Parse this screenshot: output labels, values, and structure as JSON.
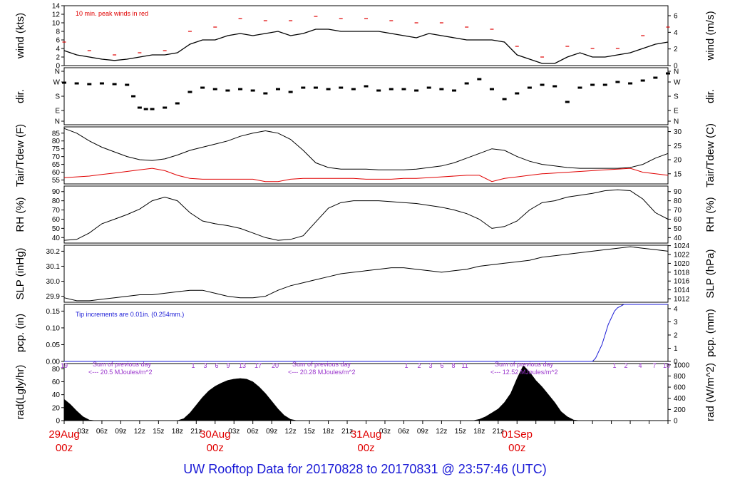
{
  "caption": "UW Rooftop Data for 20170828  to  20170831 @ 23:57:46  (UTC)",
  "colors": {
    "black": "#000000",
    "red": "#e00000",
    "blue": "#1a1ad6",
    "purple": "#9933cc"
  },
  "chart_data": [
    {
      "type": "line",
      "ylabel": "wind (kts)",
      "ylabel_right": "wind (m/s)",
      "ylim": [
        0,
        14
      ],
      "yticks": [
        "0",
        "2",
        "4",
        "6",
        "8",
        "10",
        "12",
        "14"
      ],
      "ylim_right": [
        0,
        7.2
      ],
      "yticks_right": [
        "0",
        "2",
        "4",
        "6"
      ],
      "annotation": "10 min. peak winds in red",
      "series": [
        {
          "x": [
            0,
            2,
            4,
            6,
            8,
            10,
            12,
            14,
            16,
            18,
            20,
            22,
            24,
            26,
            28,
            30,
            32,
            34,
            36,
            38,
            40,
            42,
            44,
            46,
            48,
            50,
            52,
            54,
            56,
            58,
            60,
            62,
            64,
            66,
            68,
            70,
            72,
            74,
            76,
            78,
            80,
            82,
            84,
            86,
            88,
            90,
            92,
            94,
            96
          ],
          "y": [
            3.5,
            2.5,
            2.0,
            1.5,
            1.2,
            1.5,
            2.0,
            2.5,
            2.5,
            3.0,
            5.0,
            6.0,
            6.0,
            7.0,
            7.5,
            7.0,
            7.5,
            8.0,
            7.0,
            7.5,
            8.5,
            8.5,
            8.0,
            8.0,
            8.0,
            8.0,
            7.5,
            7.0,
            6.5,
            7.5,
            7.0,
            6.5,
            6.0,
            6.0,
            6.0,
            5.5,
            2.5,
            1.5,
            0.5,
            0.5,
            2.0,
            3.0,
            2.0,
            2.0,
            2.5,
            3.0,
            4.0,
            5.0,
            5.5
          ]
        },
        {
          "x": [
            0,
            4,
            8,
            12,
            16,
            20,
            24,
            28,
            32,
            36,
            40,
            44,
            48,
            52,
            56,
            60,
            64,
            68,
            72,
            76,
            80,
            84,
            88,
            92,
            96
          ],
          "y": [
            5.5,
            3.5,
            2.5,
            3.0,
            3.5,
            8.0,
            9.0,
            11.0,
            10.5,
            10.5,
            11.5,
            11.0,
            11.0,
            10.5,
            10.0,
            10.0,
            9.0,
            8.5,
            4.5,
            2.0,
            4.5,
            4.0,
            4.0,
            7.0,
            9.0
          ]
        }
      ]
    },
    {
      "type": "scatter",
      "ylabel": "dir.",
      "ylabel_right": "dir.",
      "ylim": [
        0,
        4
      ],
      "yticks": [
        "N",
        "E",
        "S",
        "W",
        "N"
      ],
      "yticks_right": [
        "N",
        "E",
        "S",
        "W",
        "N"
      ],
      "series": [
        {
          "x": [
            0,
            2,
            4,
            6,
            8,
            10,
            11,
            12,
            13,
            14,
            16,
            18,
            20,
            22,
            24,
            26,
            28,
            30,
            32,
            34,
            36,
            38,
            40,
            42,
            44,
            46,
            48,
            50,
            52,
            54,
            56,
            58,
            60,
            62,
            64,
            66,
            68,
            70,
            72,
            74,
            76,
            78,
            80,
            82,
            84,
            86,
            88,
            90,
            92,
            94,
            96
          ],
          "y": [
            2.95,
            2.9,
            2.85,
            2.9,
            2.85,
            2.8,
            2.0,
            1.2,
            1.1,
            1.1,
            1.2,
            1.5,
            2.3,
            2.6,
            2.5,
            2.4,
            2.5,
            2.4,
            2.2,
            2.5,
            2.3,
            2.6,
            2.6,
            2.5,
            2.6,
            2.5,
            2.7,
            2.4,
            2.5,
            2.5,
            2.4,
            2.6,
            2.5,
            2.4,
            2.9,
            3.2,
            2.5,
            1.8,
            2.2,
            2.6,
            2.8,
            2.7,
            1.6,
            2.6,
            2.8,
            2.8,
            3.0,
            2.9,
            3.1,
            3.3,
            3.6
          ]
        }
      ]
    },
    {
      "type": "line",
      "ylabel": "Tair/Tdew (F)",
      "ylabel_right": "Tair/Tdew (C)",
      "ylim": [
        52.5,
        89
      ],
      "yticks": [
        "55",
        "60",
        "65",
        "70",
        "75",
        "80",
        "85"
      ],
      "yticks_right": [
        "15",
        "20",
        "25",
        "30"
      ],
      "series": [
        {
          "x": [
            0,
            2,
            4,
            6,
            8,
            10,
            12,
            14,
            16,
            18,
            20,
            22,
            24,
            26,
            28,
            30,
            32,
            34,
            36,
            38,
            40,
            42,
            44,
            46,
            48,
            50,
            52,
            54,
            56,
            58,
            60,
            62,
            64,
            66,
            68,
            70,
            72,
            74,
            76,
            78,
            80,
            82,
            84,
            86,
            88,
            90,
            92,
            94,
            96
          ],
          "y": [
            88,
            85,
            80,
            76,
            73,
            70,
            68,
            67.5,
            68.5,
            71,
            74,
            76,
            78,
            80,
            83,
            85,
            86.5,
            85,
            81,
            74,
            66,
            63,
            62,
            62,
            62,
            61.5,
            61.5,
            61.5,
            62,
            63,
            64,
            66,
            69,
            72,
            75,
            74,
            70,
            67,
            65,
            64,
            63,
            62.5,
            62.5,
            62.5,
            62.5,
            63,
            65,
            69,
            72
          ]
        },
        {
          "x": [
            0,
            2,
            4,
            6,
            8,
            10,
            12,
            14,
            16,
            18,
            20,
            22,
            24,
            26,
            28,
            30,
            32,
            34,
            36,
            38,
            40,
            42,
            44,
            46,
            48,
            50,
            52,
            54,
            56,
            58,
            60,
            62,
            64,
            66,
            68,
            70,
            72,
            74,
            76,
            78,
            80,
            82,
            84,
            86,
            88,
            90,
            92,
            94,
            96
          ],
          "y": [
            56.5,
            57,
            57.5,
            58.5,
            59.5,
            60.5,
            61.5,
            62.5,
            61,
            58,
            56,
            55.5,
            55.5,
            55.5,
            55.5,
            55.5,
            54,
            54,
            55.5,
            56,
            56,
            56,
            56,
            56,
            55.5,
            55.5,
            55.5,
            56,
            56,
            56.5,
            57,
            57.5,
            58,
            58,
            54,
            56,
            57,
            58,
            59,
            59.5,
            60,
            60.5,
            61,
            61.5,
            62,
            62.5,
            60,
            59,
            58
          ]
        }
      ]
    },
    {
      "type": "line",
      "ylabel": "RH (%)",
      "ylabel_right": "RH (%)",
      "ylim": [
        34,
        96
      ],
      "yticks": [
        "40",
        "50",
        "60",
        "70",
        "80",
        "90"
      ],
      "yticks_right": [
        "40",
        "50",
        "60",
        "70",
        "80",
        "90"
      ],
      "series": [
        {
          "x": [
            0,
            2,
            4,
            6,
            8,
            10,
            12,
            14,
            16,
            18,
            20,
            22,
            24,
            26,
            28,
            30,
            32,
            34,
            36,
            38,
            40,
            42,
            44,
            46,
            48,
            50,
            52,
            54,
            56,
            58,
            60,
            62,
            64,
            66,
            68,
            70,
            72,
            74,
            76,
            78,
            80,
            82,
            84,
            86,
            88,
            90,
            92,
            94,
            96
          ],
          "y": [
            37,
            38,
            45,
            55,
            60,
            65,
            71,
            80,
            84,
            80,
            67,
            58,
            55,
            53,
            50,
            45,
            40,
            37,
            38,
            42,
            57,
            72,
            78,
            80,
            80,
            80,
            79,
            78,
            77,
            75,
            73,
            70,
            66,
            60,
            50,
            52,
            58,
            70,
            78,
            80,
            84,
            86,
            88,
            91,
            92,
            91,
            82,
            67,
            60
          ]
        }
      ]
    },
    {
      "type": "line",
      "ylabel": "SLP (inHg)",
      "ylabel_right": "SLP (hPa)",
      "ylim": [
        29.86,
        30.24
      ],
      "yticks": [
        "29.9",
        "30.0",
        "30.1",
        "30.2"
      ],
      "ylim_right": [
        1011.2,
        1024.1
      ],
      "yticks_right": [
        "1012",
        "1014",
        "1016",
        "1018",
        "1020",
        "1022",
        "1024"
      ],
      "series": [
        {
          "x": [
            0,
            2,
            4,
            6,
            8,
            10,
            12,
            14,
            16,
            18,
            20,
            22,
            24,
            26,
            28,
            30,
            32,
            34,
            36,
            38,
            40,
            42,
            44,
            46,
            48,
            50,
            52,
            54,
            56,
            58,
            60,
            62,
            64,
            66,
            68,
            70,
            72,
            74,
            76,
            78,
            80,
            82,
            84,
            86,
            88,
            90,
            92,
            94,
            96
          ],
          "y": [
            29.89,
            29.87,
            29.87,
            29.88,
            29.89,
            29.9,
            29.91,
            29.91,
            29.92,
            29.93,
            29.94,
            29.94,
            29.92,
            29.9,
            29.89,
            29.89,
            29.9,
            29.94,
            29.97,
            29.99,
            30.01,
            30.03,
            30.05,
            30.06,
            30.07,
            30.08,
            30.09,
            30.09,
            30.08,
            30.07,
            30.06,
            30.07,
            30.08,
            30.1,
            30.11,
            30.12,
            30.13,
            30.14,
            30.16,
            30.17,
            30.18,
            30.19,
            30.2,
            30.21,
            30.22,
            30.23,
            30.22,
            30.21,
            30.2
          ]
        }
      ]
    },
    {
      "type": "line",
      "ylabel": "pcp. (in)",
      "ylabel_right": "pcp. (mm)",
      "ylim": [
        0,
        0.17
      ],
      "yticks": [
        "0.00",
        "0.05",
        "0.10",
        "0.15"
      ],
      "ylim_right": [
        0,
        4.32
      ],
      "yticks_right": [
        "0",
        "1",
        "2",
        "3",
        "4"
      ],
      "annotation": "Tip increments are 0.01in. (0.254mm.)",
      "series": [
        {
          "x": [
            0,
            84,
            84.5,
            85,
            85.5,
            86,
            86.5,
            87,
            87.5,
            88,
            88.5,
            89,
            96
          ],
          "y": [
            0,
            0,
            0.01,
            0.03,
            0.05,
            0.08,
            0.11,
            0.13,
            0.15,
            0.16,
            0.165,
            0.17,
            0.17
          ]
        }
      ]
    },
    {
      "type": "area",
      "ylabel": "rad(Lgly/hr)",
      "ylabel_right": "rad (W/m^2)",
      "ylim": [
        0,
        88
      ],
      "yticks": [
        "0",
        "20",
        "40",
        "60",
        "80"
      ],
      "ylim_right": [
        0,
        1023
      ],
      "yticks_right": [
        "0",
        "200",
        "400",
        "600",
        "800",
        "1000"
      ],
      "annotations": [
        {
          "day": "Sum of previous day",
          "value": "<--- 20.5 MJoules/m^2"
        },
        {
          "day": "Sum of previous day",
          "value": "<--- 20.28 MJoules/m^2"
        },
        {
          "day": "Sum of previous day",
          "value": "<--- 12.52 MJoules/m^2"
        }
      ],
      "hour_marks": [
        [
          "19",
          "1",
          "3",
          "6",
          "9",
          "13",
          "17",
          "20"
        ],
        [
          "1",
          "2",
          "3",
          "6",
          "8",
          "11"
        ],
        [
          "1",
          "2",
          "4",
          "7",
          "10"
        ]
      ],
      "series": [
        {
          "x": [
            0,
            1,
            2,
            3,
            4,
            5,
            6,
            7,
            8,
            9,
            10,
            11,
            12,
            13,
            14,
            15,
            16,
            17,
            18,
            19,
            20,
            21,
            22,
            23,
            24,
            25,
            26,
            27,
            28,
            29,
            30,
            31,
            32,
            33,
            34,
            35,
            36,
            37,
            38,
            39,
            40,
            41,
            42,
            43,
            44,
            45,
            46,
            47,
            48,
            49,
            50,
            51,
            52,
            53,
            54,
            55,
            56,
            57,
            58,
            59,
            60,
            61,
            62,
            63,
            64,
            65,
            66,
            67,
            68,
            69,
            70,
            71,
            72,
            73,
            74,
            75,
            76,
            77,
            78,
            79,
            80,
            81,
            82,
            83,
            84,
            85,
            86,
            87,
            88,
            89,
            90,
            91,
            92,
            93,
            94,
            95,
            96
          ],
          "y": [
            33,
            25,
            15,
            6,
            1,
            0,
            0,
            0,
            0,
            0,
            0,
            0,
            0,
            0,
            0,
            0,
            0,
            0,
            0,
            3,
            12,
            24,
            36,
            46,
            53,
            58,
            62,
            64,
            65,
            64,
            60,
            52,
            42,
            30,
            18,
            8,
            2,
            0,
            0,
            0,
            0,
            0,
            0,
            0,
            0,
            0,
            0,
            0,
            0,
            0,
            0,
            0,
            0,
            0,
            0,
            0,
            0,
            0,
            0,
            0,
            0,
            0,
            0,
            0,
            0,
            0,
            2,
            6,
            12,
            18,
            28,
            42,
            65,
            85,
            75,
            62,
            52,
            40,
            28,
            14,
            6,
            1,
            0,
            0,
            0,
            0,
            0,
            0,
            0,
            0,
            0,
            0,
            0,
            0,
            0,
            0,
            0
          ]
        }
      ]
    }
  ],
  "x_axis": {
    "range_hours": [
      0,
      96
    ],
    "hour_labels": [
      "03z",
      "06z",
      "09z",
      "12z",
      "15z",
      "18z",
      "21z"
    ],
    "dates": [
      {
        "day": "29Aug",
        "hour": "00z"
      },
      {
        "day": "30Aug",
        "hour": "00z"
      },
      {
        "day": "31Aug",
        "hour": "00z"
      },
      {
        "day": "01Sep",
        "hour": "00z"
      }
    ]
  }
}
